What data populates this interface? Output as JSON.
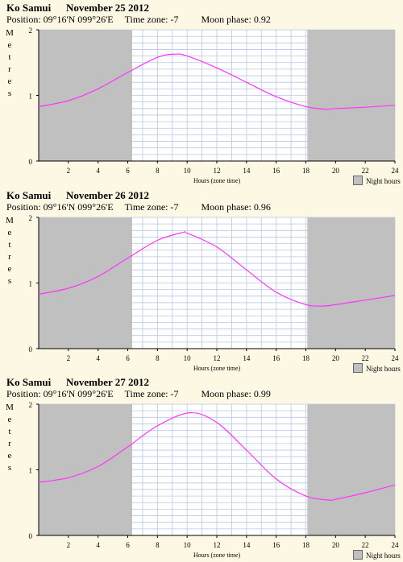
{
  "panels": [
    {
      "place": "Ko Samui",
      "date": "November 25 2012",
      "position": "Position: 09°16'N 099°26'E",
      "timezone": "Time zone: -7",
      "moon": "Moon phase: 0.92"
    },
    {
      "place": "Ko Samui",
      "date": "November 26 2012",
      "position": "Position: 09°16'N 099°26'E",
      "timezone": "Time zone: -7",
      "moon": "Moon phase: 0.96"
    },
    {
      "place": "Ko Samui",
      "date": "November 27 2012",
      "position": "Position: 09°16'N 099°26'E",
      "timezone": "Time zone: -7",
      "moon": "Moon phase: 0.99"
    }
  ],
  "ylabel": "Metres",
  "xlabel": "Hours (zone time)",
  "legend": "Night hours",
  "colors": {
    "night": "#c0c0c0",
    "day": "#ffffff",
    "grid": "#b8c8e8",
    "curve": "#ff33ff"
  },
  "chart_data": [
    {
      "type": "line",
      "title": "Ko Samui November 25 2012",
      "xlabel": "Hours (zone time)",
      "ylabel": "Metres",
      "xlim": [
        0,
        24
      ],
      "ylim": [
        0,
        2
      ],
      "xticks": [
        2,
        4,
        6,
        8,
        10,
        12,
        14,
        16,
        18,
        20,
        22,
        24
      ],
      "yticks": [
        0,
        1,
        2
      ],
      "night_hours": [
        [
          0,
          6.3
        ],
        [
          18.1,
          24
        ]
      ],
      "series": [
        {
          "x": [
            0,
            2,
            4,
            6,
            8,
            9.2,
            10,
            12,
            14,
            16,
            18,
            19.3,
            20,
            22,
            24
          ],
          "values": [
            0.83,
            0.92,
            1.1,
            1.35,
            1.58,
            1.63,
            1.6,
            1.42,
            1.2,
            0.98,
            0.83,
            0.79,
            0.8,
            0.82,
            0.85
          ]
        }
      ]
    },
    {
      "type": "line",
      "title": "Ko Samui November 26 2012",
      "xlabel": "Hours (zone time)",
      "ylabel": "Metres",
      "xlim": [
        0,
        24
      ],
      "ylim": [
        0,
        2
      ],
      "xticks": [
        2,
        4,
        6,
        8,
        10,
        12,
        14,
        16,
        18,
        20,
        22,
        24
      ],
      "yticks": [
        0,
        1,
        2
      ],
      "night_hours": [
        [
          0,
          6.3
        ],
        [
          18.1,
          24
        ]
      ],
      "series": [
        {
          "x": [
            0,
            2,
            4,
            6,
            8,
            9.7,
            10,
            12,
            14,
            16,
            18,
            19.2,
            20,
            22,
            24
          ],
          "values": [
            0.83,
            0.92,
            1.1,
            1.38,
            1.65,
            1.77,
            1.76,
            1.55,
            1.2,
            0.86,
            0.67,
            0.65,
            0.67,
            0.74,
            0.81
          ]
        }
      ]
    },
    {
      "type": "line",
      "title": "Ko Samui November 27 2012",
      "xlabel": "Hours (zone time)",
      "ylabel": "Metres",
      "xlim": [
        0,
        24
      ],
      "ylim": [
        0,
        2
      ],
      "xticks": [
        2,
        4,
        6,
        8,
        10,
        12,
        14,
        16,
        18,
        20,
        22,
        24
      ],
      "yticks": [
        0,
        1,
        2
      ],
      "night_hours": [
        [
          0,
          6.3
        ],
        [
          18.1,
          24
        ]
      ],
      "series": [
        {
          "x": [
            0,
            2,
            4,
            6,
            8,
            10.2,
            12,
            14,
            16,
            18,
            19.5,
            20,
            22,
            24
          ],
          "values": [
            0.81,
            0.88,
            1.05,
            1.35,
            1.67,
            1.87,
            1.72,
            1.3,
            0.86,
            0.6,
            0.54,
            0.55,
            0.65,
            0.77
          ]
        }
      ]
    }
  ]
}
